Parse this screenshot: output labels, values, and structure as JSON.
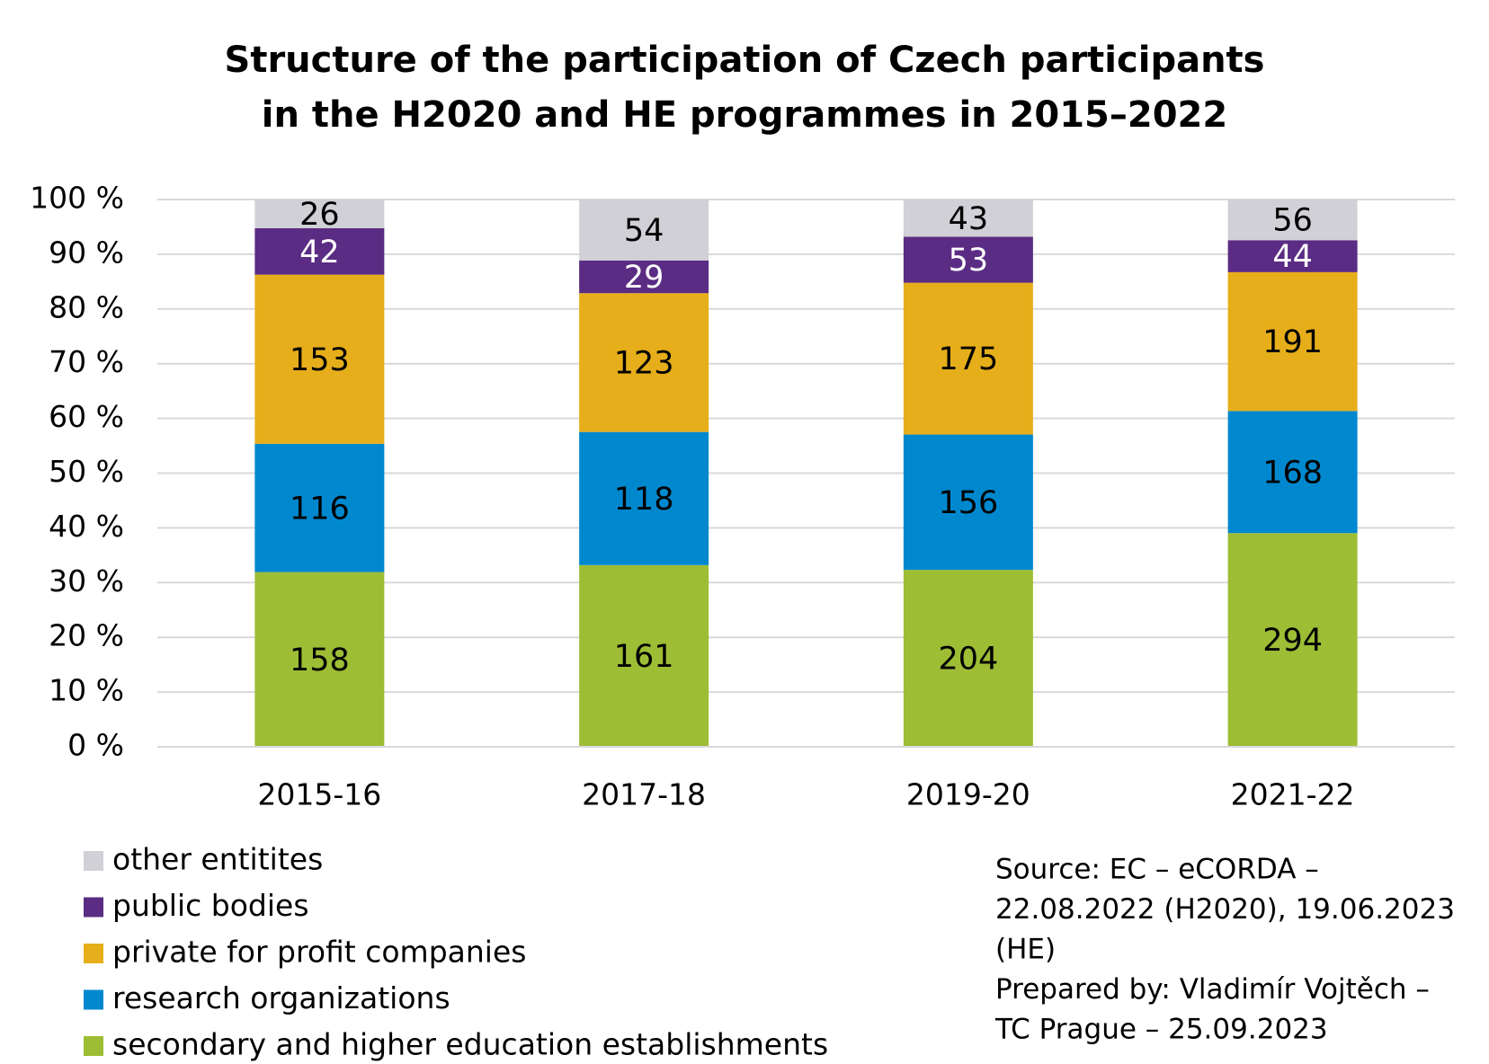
{
  "chart_data": {
    "type": "stacked_percent_bar",
    "title": [
      "Structure of the participation of Czech participants",
      "in the H2020 and HE programmes in 2015–2022"
    ],
    "categories": [
      "2015-16",
      "2017-18",
      "2019-20",
      "2021-22"
    ],
    "series": [
      {
        "name": "secondary and higher education establishments",
        "color": "#9dbd35",
        "label_color": "#000000",
        "values": [
          158,
          161,
          204,
          294
        ]
      },
      {
        "name": "research organizations",
        "color": "#0088cf",
        "label_color": "#000000",
        "values": [
          116,
          118,
          156,
          168
        ]
      },
      {
        "name": "private for profit companies",
        "color": "#e6ae1a",
        "label_color": "#000000",
        "values": [
          153,
          123,
          175,
          191
        ]
      },
      {
        "name": "public bodies",
        "color": "#5b2c83",
        "label_color": "#ffffff",
        "values": [
          42,
          29,
          53,
          44
        ]
      },
      {
        "name": "other entitites",
        "color": "#d0d0d6",
        "label_color": "#000000",
        "values": [
          26,
          54,
          43,
          56
        ]
      }
    ],
    "ylim": [
      0,
      100
    ],
    "yticks": [
      {
        "value": 0,
        "label": "0 %"
      },
      {
        "value": 10,
        "label": "10 %"
      },
      {
        "value": 20,
        "label": "20 %"
      },
      {
        "value": 30,
        "label": "30 %"
      },
      {
        "value": 40,
        "label": "40 %"
      },
      {
        "value": 50,
        "label": "50 %"
      },
      {
        "value": 60,
        "label": "60 %"
      },
      {
        "value": 70,
        "label": "70 %"
      },
      {
        "value": 80,
        "label": "80 %"
      },
      {
        "value": 90,
        "label": "90 %"
      },
      {
        "value": 100,
        "label": "100 %"
      }
    ],
    "grid": true,
    "legend": "bottom-left",
    "source": [
      "Source: EC – eCORDA –",
      "22.08.2022 (H2020), 19.06.2023",
      "(HE)",
      "Prepared by: Vladimír Vojtěch –",
      "TC Prague – 25.09.2023"
    ]
  }
}
